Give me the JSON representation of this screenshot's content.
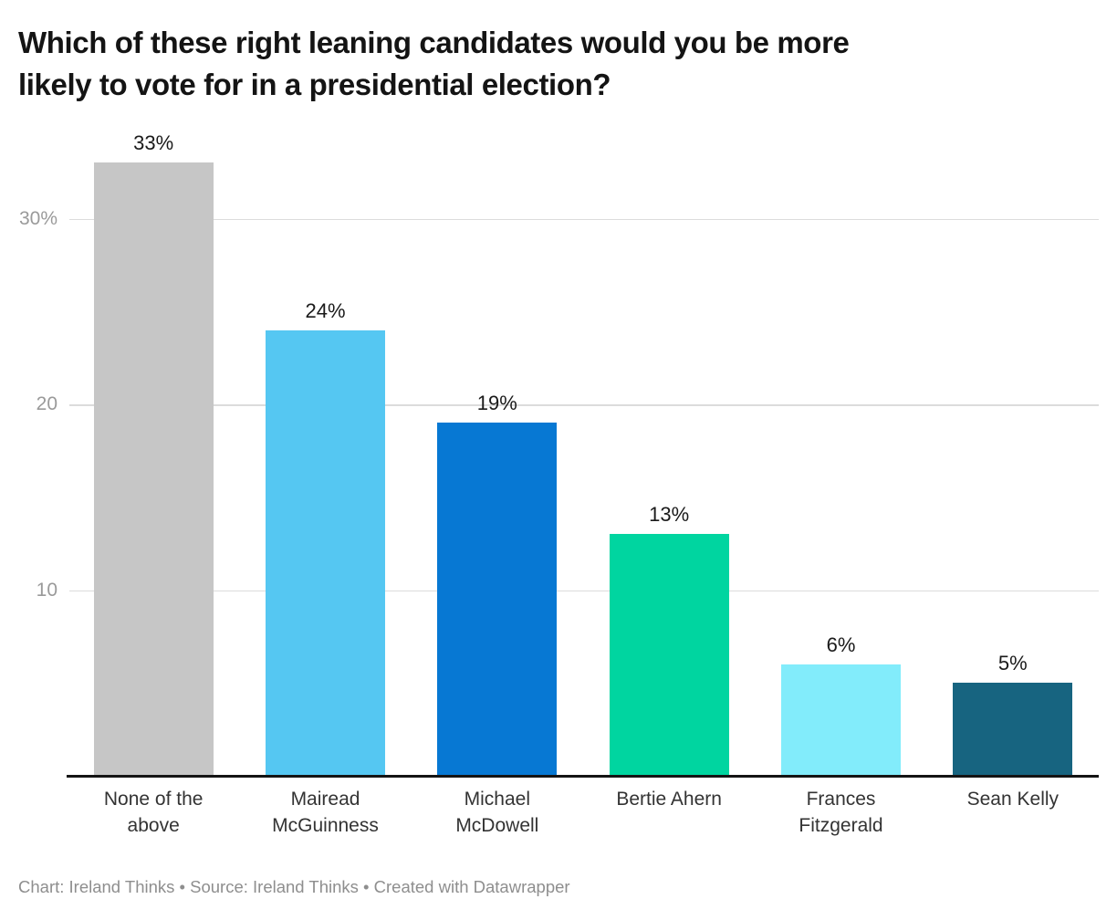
{
  "header": {
    "title": "Which of these right leaning candidates would you be more likely to vote for in a presidential election?",
    "title_lines": [
      "Which of these right leaning candidates would you be more",
      "likely to vote for in a presidential election?"
    ]
  },
  "chart_data": {
    "type": "bar",
    "title": "Which of these right leaning candidates would you be more likely to vote for in a presidential election?",
    "categories": [
      "None of the above",
      "Mairead McGuinness",
      "Michael McDowell",
      "Bertie Ahern",
      "Frances Fitzgerald",
      "Sean Kelly"
    ],
    "values": [
      33,
      24,
      19,
      13,
      6,
      5
    ],
    "value_labels": [
      "33%",
      "24%",
      "19%",
      "13%",
      "6%",
      "5%"
    ],
    "bar_colors": [
      "#c6c6c6",
      "#55c7f2",
      "#0778d3",
      "#00d5a0",
      "#82ecfb",
      "#176480"
    ],
    "xlabel": "",
    "ylabel": "",
    "ylim": [
      0,
      35
    ],
    "yticks": [
      {
        "value": 10,
        "label": "10"
      },
      {
        "value": 20,
        "label": "20"
      },
      {
        "value": 30,
        "label": "30%"
      }
    ],
    "grid": "horizontal",
    "legend": "none"
  },
  "footer": {
    "text": "Chart: Ireland Thinks • Source: Ireland Thinks • Created with Datawrapper"
  }
}
